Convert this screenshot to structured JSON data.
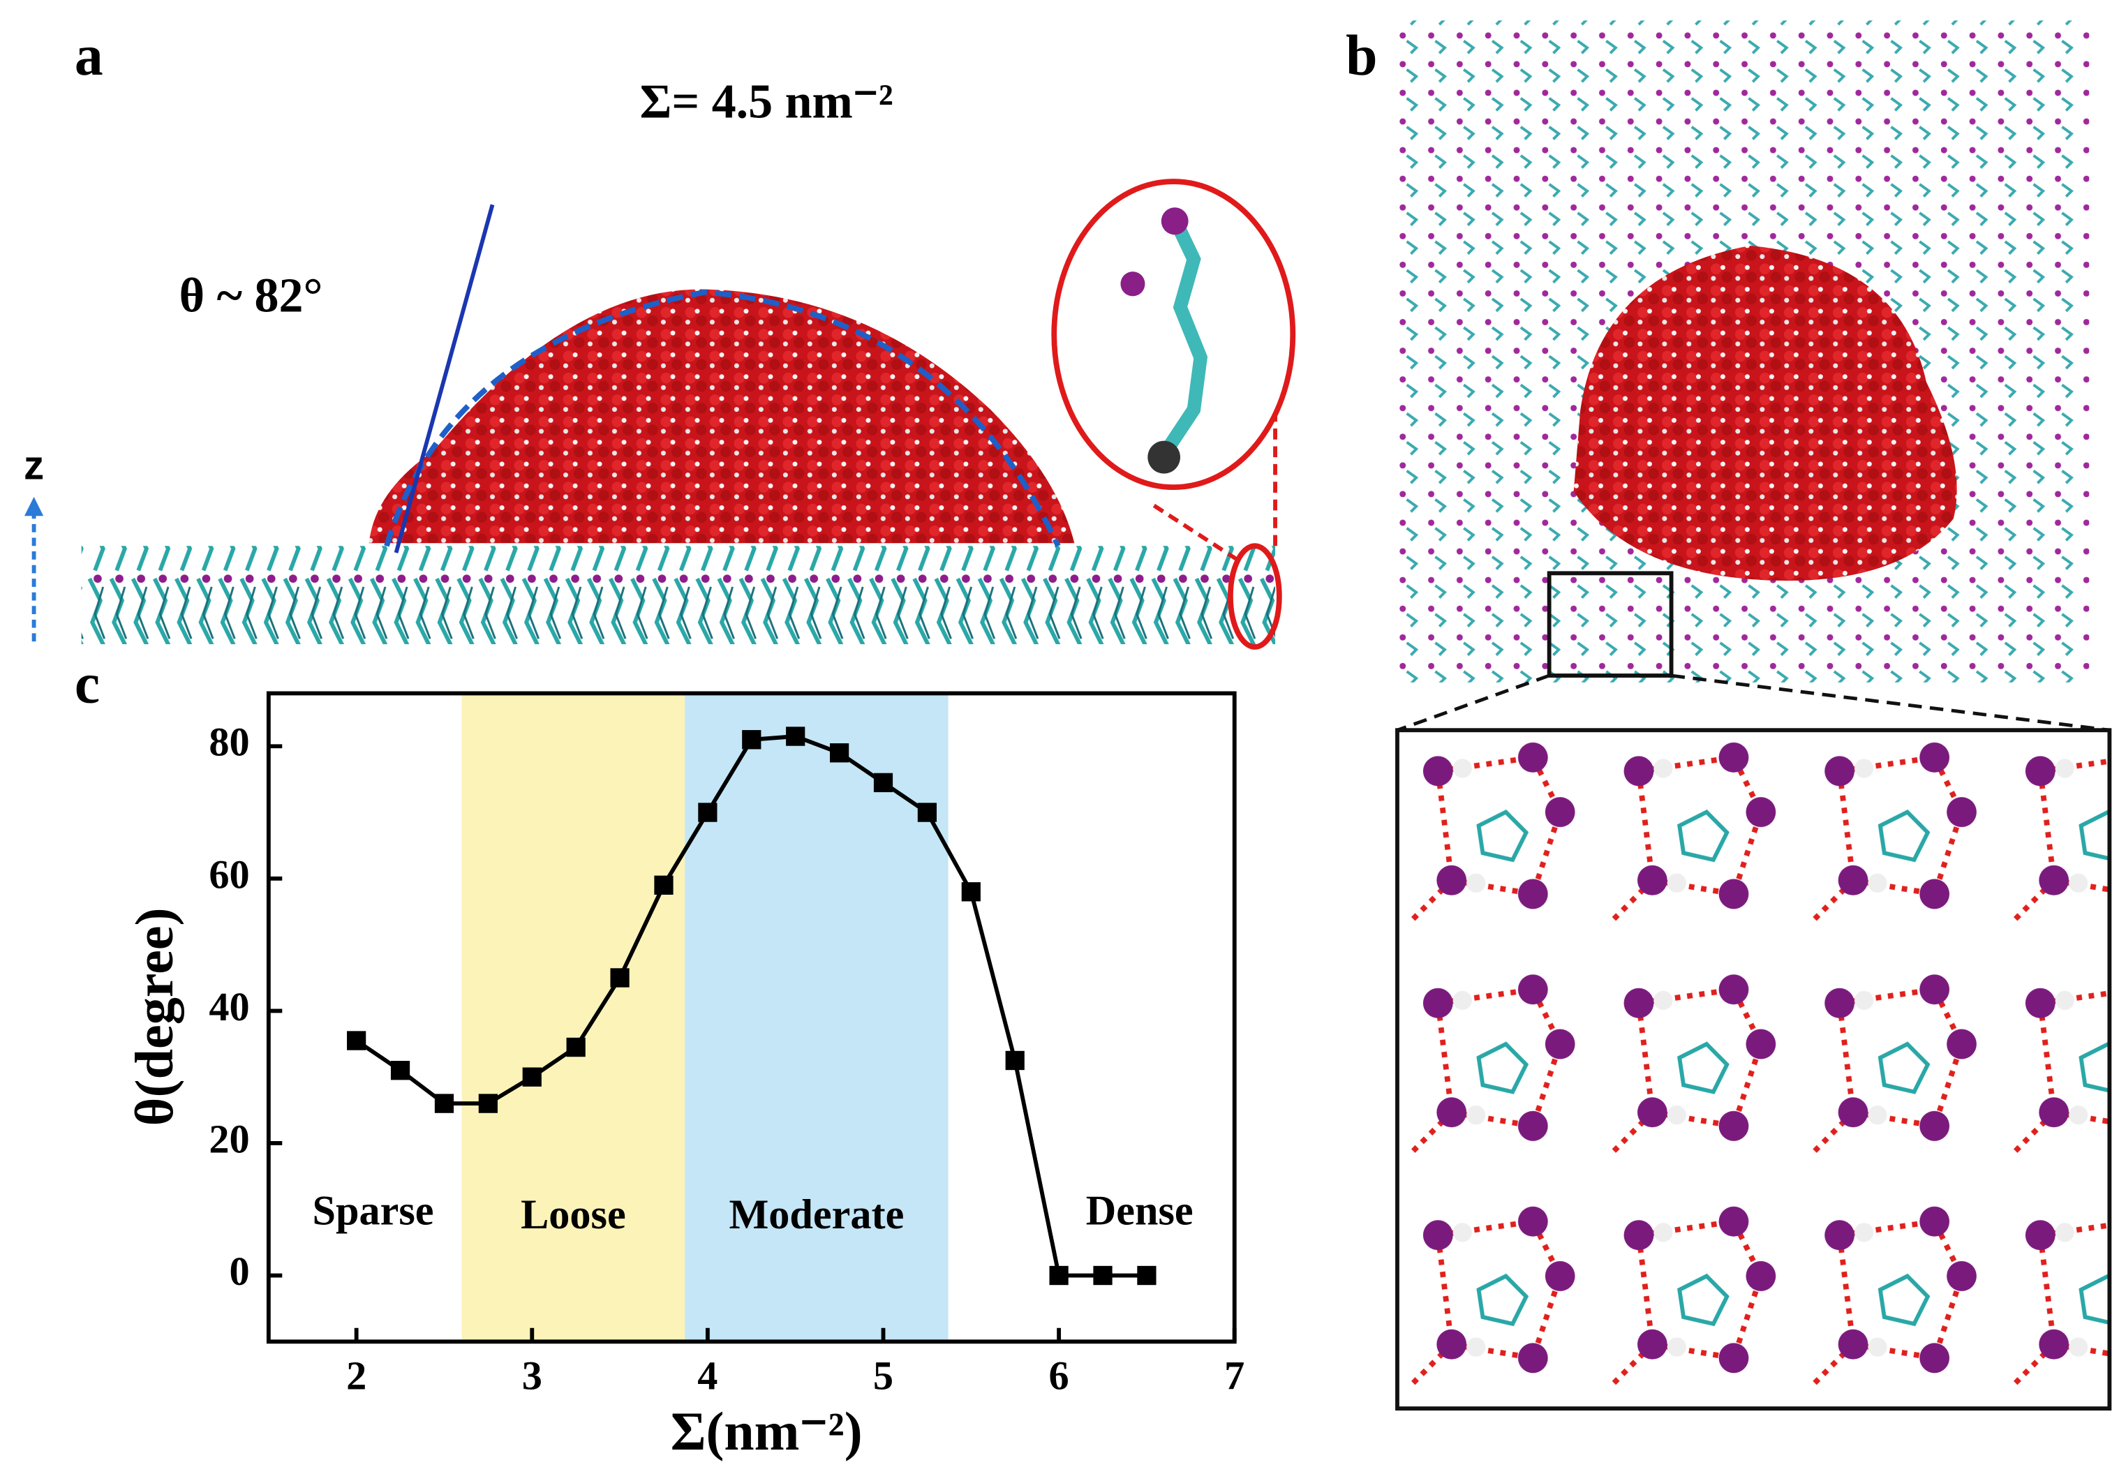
{
  "panel_labels": [
    "a",
    "b",
    "c"
  ],
  "panel_a": {
    "surface_density": "Σ= 4.5 nm⁻²",
    "contact_angle": "θ ~ 82°",
    "axis_label": "z"
  },
  "chart_data": {
    "type": "line",
    "x_label": "Σ(nm⁻²)",
    "y_label": "θ(degree)",
    "x": [
      2,
      2.25,
      2.5,
      2.75,
      3,
      3.25,
      3.5,
      3.75,
      4,
      4.25,
      4.5,
      4.75,
      5,
      5.25,
      5.5,
      5.75,
      6,
      6.25,
      6.5
    ],
    "series": [
      {
        "color": "#000000",
        "values": [
          35.5,
          31,
          26,
          26,
          30,
          34.5,
          45,
          59,
          70,
          81,
          81.5,
          79,
          74.5,
          70,
          58,
          32.5,
          0,
          0,
          0
        ]
      }
    ],
    "xlim": [
      1.5,
      7
    ],
    "ylim": [
      -10,
      88
    ],
    "xticks": [
      2,
      3,
      4,
      5,
      6,
      7
    ],
    "yticks": [
      0,
      20,
      40,
      60,
      80
    ],
    "bands": [
      {
        "label": "Loose",
        "range": [
          2.6,
          3.87
        ],
        "color": "#fbf3b8"
      },
      {
        "label": "Moderate",
        "range": [
          3.87,
          5.37
        ],
        "color": "#c4e6f6"
      }
    ],
    "annotations": [
      "Sparse",
      "Dense"
    ]
  }
}
